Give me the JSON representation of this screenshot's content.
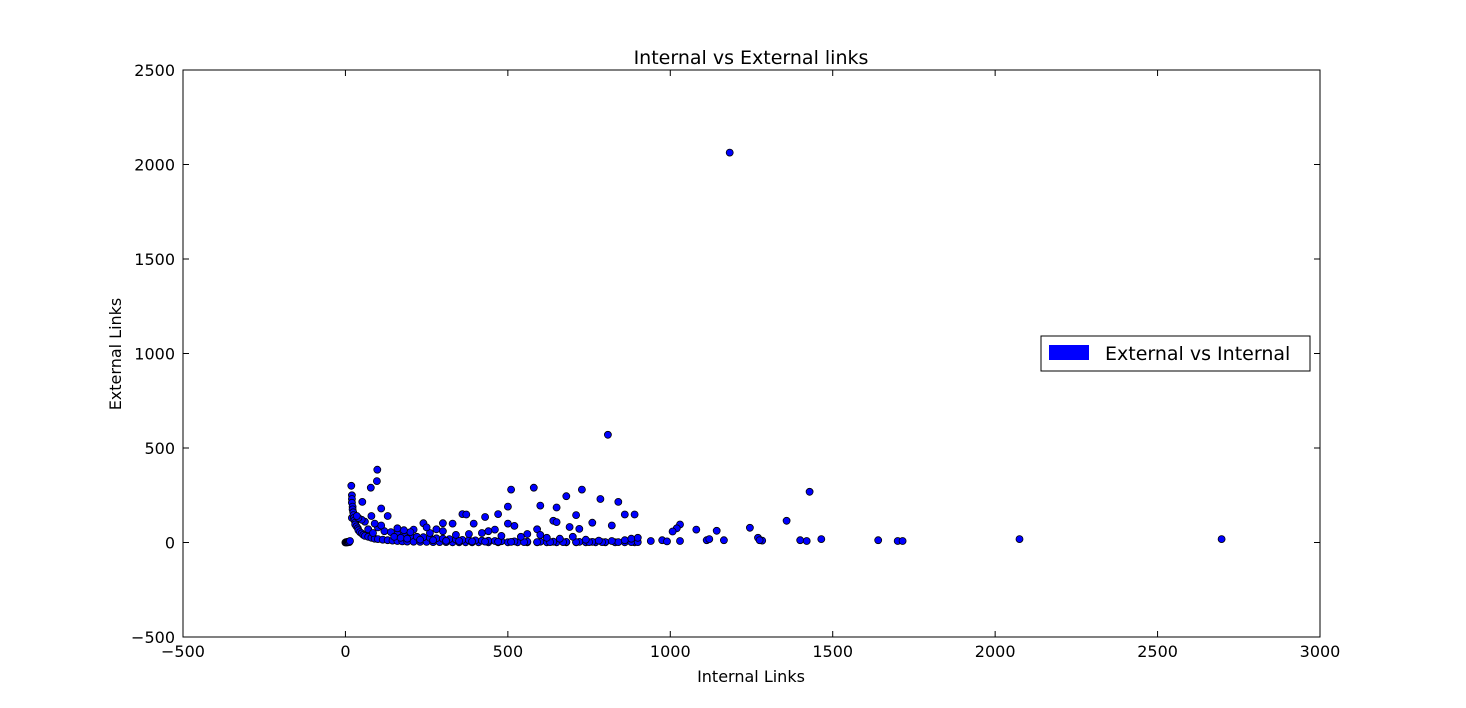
{
  "chart_data": {
    "type": "scatter",
    "title": "Internal vs External links",
    "xlabel": "Internal Links",
    "ylabel": "External Links",
    "xlim": [
      -500,
      3000
    ],
    "ylim": [
      -500,
      2500
    ],
    "xticks": [
      "−500",
      "0",
      "500",
      "1000",
      "1500",
      "2000",
      "2500",
      "3000"
    ],
    "yticks": [
      "−500",
      "0",
      "500",
      "1000",
      "1500",
      "2000",
      "2500"
    ],
    "xtick_values": [
      -500,
      0,
      500,
      1000,
      1500,
      2000,
      2500,
      3000
    ],
    "ytick_values": [
      -500,
      0,
      500,
      1000,
      1500,
      2000,
      2500
    ],
    "grid": false,
    "legend": {
      "position": "center-right",
      "entries": [
        {
          "label": "External vs Internal",
          "color": "#0000ff"
        }
      ]
    },
    "series": [
      {
        "name": "External vs Internal",
        "color": "#0000ff",
        "edgecolor": "#000000",
        "points": [
          [
            1183,
            2063
          ],
          [
            808,
            570
          ],
          [
            98,
            385
          ],
          [
            97,
            325
          ],
          [
            18,
            300
          ],
          [
            78,
            290
          ],
          [
            580,
            290
          ],
          [
            510,
            280
          ],
          [
            728,
            280
          ],
          [
            1429,
            268
          ],
          [
            680,
            245
          ],
          [
            785,
            230
          ],
          [
            840,
            215
          ],
          [
            52,
            215
          ],
          [
            600,
            195
          ],
          [
            500,
            190
          ],
          [
            650,
            185
          ],
          [
            110,
            180
          ],
          [
            470,
            150
          ],
          [
            360,
            150
          ],
          [
            372,
            148
          ],
          [
            860,
            148
          ],
          [
            890,
            148
          ],
          [
            710,
            145
          ],
          [
            130,
            140
          ],
          [
            80,
            140
          ],
          [
            430,
            135
          ],
          [
            20,
            130
          ],
          [
            640,
            115
          ],
          [
            1358,
            115
          ],
          [
            650,
            108
          ],
          [
            760,
            105
          ],
          [
            395,
            100
          ],
          [
            330,
            100
          ],
          [
            300,
            102
          ],
          [
            240,
            102
          ],
          [
            500,
            100
          ],
          [
            1030,
            95
          ],
          [
            820,
            90
          ],
          [
            520,
            88
          ],
          [
            690,
            82
          ],
          [
            1245,
            78
          ],
          [
            1020,
            75
          ],
          [
            720,
            72
          ],
          [
            590,
            70
          ],
          [
            210,
            68
          ],
          [
            1080,
            68
          ],
          [
            460,
            68
          ],
          [
            1143,
            62
          ],
          [
            1007,
            58
          ],
          [
            20,
            250
          ],
          [
            20,
            230
          ],
          [
            20,
            210
          ],
          [
            22,
            190
          ],
          [
            22,
            175
          ],
          [
            24,
            160
          ],
          [
            25,
            145
          ],
          [
            26,
            130
          ],
          [
            28,
            118
          ],
          [
            30,
            105
          ],
          [
            30,
            95
          ],
          [
            34,
            85
          ],
          [
            38,
            75
          ],
          [
            40,
            65
          ],
          [
            45,
            55
          ],
          [
            50,
            48
          ],
          [
            55,
            40
          ],
          [
            60,
            35
          ],
          [
            70,
            30
          ],
          [
            80,
            25
          ],
          [
            90,
            20
          ],
          [
            100,
            18
          ],
          [
            115,
            15
          ],
          [
            130,
            12
          ],
          [
            145,
            10
          ],
          [
            160,
            8
          ],
          [
            175,
            6
          ],
          [
            190,
            5
          ],
          [
            210,
            4
          ],
          [
            230,
            3
          ],
          [
            250,
            3
          ],
          [
            270,
            2
          ],
          [
            290,
            2
          ],
          [
            310,
            2
          ],
          [
            330,
            1
          ],
          [
            350,
            1
          ],
          [
            370,
            1
          ],
          [
            390,
            1
          ],
          [
            410,
            1
          ],
          [
            440,
            1
          ],
          [
            470,
            1
          ],
          [
            500,
            1
          ],
          [
            530,
            1
          ],
          [
            560,
            1
          ],
          [
            590,
            1
          ],
          [
            620,
            1
          ],
          [
            650,
            1
          ],
          [
            680,
            1
          ],
          [
            710,
            1
          ],
          [
            740,
            1
          ],
          [
            770,
            1
          ],
          [
            800,
            1
          ],
          [
            830,
            1
          ],
          [
            860,
            1
          ],
          [
            890,
            1
          ],
          [
            120,
            60
          ],
          [
            140,
            55
          ],
          [
            160,
            45
          ],
          [
            180,
            40
          ],
          [
            200,
            35
          ],
          [
            220,
            30
          ],
          [
            240,
            28
          ],
          [
            260,
            25
          ],
          [
            280,
            22
          ],
          [
            300,
            20
          ],
          [
            320,
            18
          ],
          [
            340,
            16
          ],
          [
            360,
            14
          ],
          [
            380,
            12
          ],
          [
            400,
            11
          ],
          [
            420,
            10
          ],
          [
            440,
            9
          ],
          [
            460,
            8
          ],
          [
            480,
            7
          ],
          [
            520,
            6
          ],
          [
            560,
            5
          ],
          [
            600,
            4
          ],
          [
            640,
            4
          ],
          [
            680,
            3
          ],
          [
            720,
            3
          ],
          [
            760,
            3
          ],
          [
            800,
            2
          ],
          [
            840,
            2
          ],
          [
            880,
            2
          ],
          [
            900,
            2
          ],
          [
            100,
            80
          ],
          [
            110,
            90
          ],
          [
            90,
            100
          ],
          [
            60,
            110
          ],
          [
            50,
            120
          ],
          [
            40,
            130
          ],
          [
            35,
            140
          ],
          [
            70,
            70
          ],
          [
            85,
            50
          ],
          [
            150,
            30
          ],
          [
            170,
            25
          ],
          [
            190,
            20
          ],
          [
            230,
            15
          ],
          [
            270,
            12
          ],
          [
            310,
            9
          ],
          [
            350,
            8
          ],
          [
            390,
            6
          ],
          [
            430,
            5
          ],
          [
            470,
            4
          ],
          [
            510,
            3
          ],
          [
            550,
            2
          ],
          [
            590,
            2
          ],
          [
            630,
            2
          ],
          [
            670,
            2
          ],
          [
            710,
            2
          ],
          [
            750,
            2
          ],
          [
            790,
            2
          ],
          [
            340,
            40
          ],
          [
            380,
            45
          ],
          [
            420,
            50
          ],
          [
            440,
            60
          ],
          [
            480,
            35
          ],
          [
            540,
            30
          ],
          [
            560,
            45
          ],
          [
            600,
            40
          ],
          [
            620,
            25
          ],
          [
            660,
            20
          ],
          [
            700,
            30
          ],
          [
            740,
            15
          ],
          [
            780,
            10
          ],
          [
            820,
            8
          ],
          [
            860,
            12
          ],
          [
            880,
            20
          ],
          [
            900,
            25
          ],
          [
            300,
            60
          ],
          [
            260,
            50
          ],
          [
            280,
            70
          ],
          [
            250,
            80
          ],
          [
            200,
            55
          ],
          [
            180,
            65
          ],
          [
            160,
            75
          ],
          [
            940,
            8
          ],
          [
            975,
            12
          ],
          [
            990,
            6
          ],
          [
            1030,
            8
          ],
          [
            1112,
            12
          ],
          [
            1120,
            18
          ],
          [
            1165,
            12
          ],
          [
            1270,
            25
          ],
          [
            1283,
            10
          ],
          [
            1275,
            12
          ],
          [
            1400,
            12
          ],
          [
            1420,
            8
          ],
          [
            1465,
            18
          ],
          [
            1640,
            12
          ],
          [
            1700,
            8
          ],
          [
            1715,
            8
          ],
          [
            2075,
            18
          ],
          [
            2697,
            18
          ],
          [
            0,
            0
          ],
          [
            2,
            2
          ],
          [
            4,
            0
          ],
          [
            6,
            3
          ],
          [
            8,
            1
          ],
          [
            10,
            5
          ],
          [
            12,
            2
          ],
          [
            14,
            8
          ]
        ]
      }
    ]
  }
}
